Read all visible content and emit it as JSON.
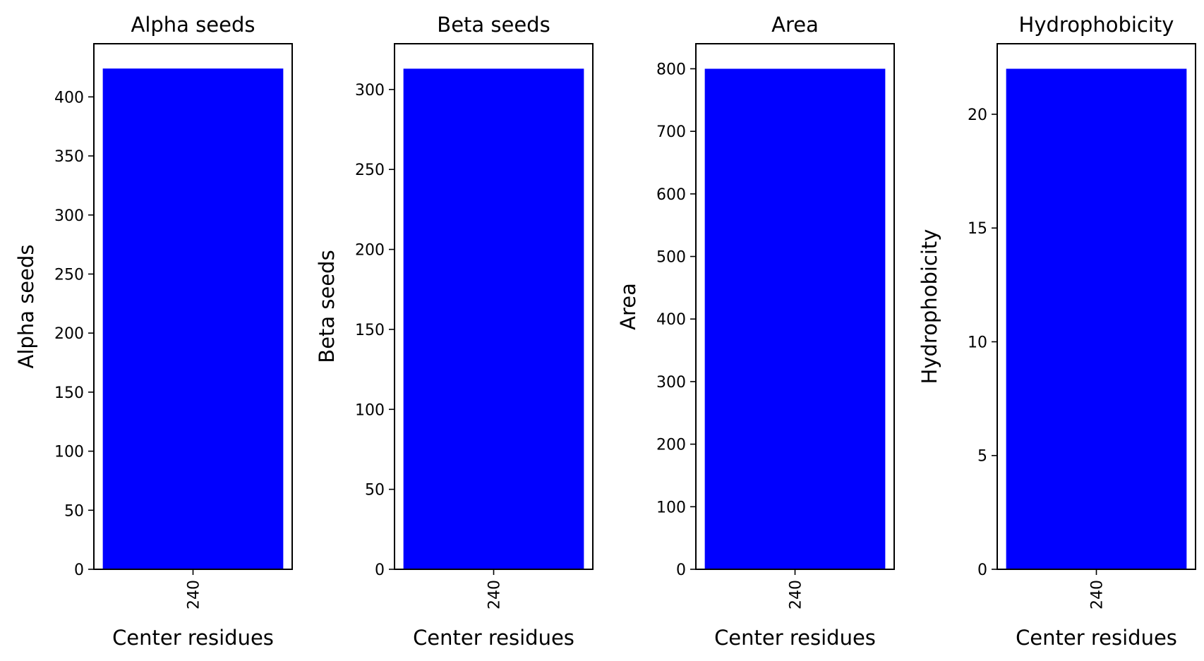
{
  "chart_data": [
    {
      "type": "bar",
      "title": "Alpha seeds",
      "xlabel": "Center residues",
      "ylabel": "Alpha seeds",
      "categories": [
        "240"
      ],
      "values": [
        424
      ],
      "ylim": [
        0,
        445
      ],
      "yticks": [
        0,
        50,
        100,
        150,
        200,
        250,
        300,
        350,
        400
      ],
      "color": "#0000ff",
      "grid": false
    },
    {
      "type": "bar",
      "title": "Beta seeds",
      "xlabel": "Center residues",
      "ylabel": "Beta seeds",
      "categories": [
        "240"
      ],
      "values": [
        313
      ],
      "ylim": [
        0,
        328.6
      ],
      "yticks": [
        0,
        50,
        100,
        150,
        200,
        250,
        300
      ],
      "color": "#0000ff",
      "grid": false
    },
    {
      "type": "bar",
      "title": "Area",
      "xlabel": "Center residues",
      "ylabel": "Area",
      "categories": [
        "240"
      ],
      "values": [
        800
      ],
      "ylim": [
        0,
        840
      ],
      "yticks": [
        0,
        100,
        200,
        300,
        400,
        500,
        600,
        700,
        800
      ],
      "color": "#0000ff",
      "grid": false
    },
    {
      "type": "bar",
      "title": "Hydrophobicity",
      "xlabel": "Center residues",
      "ylabel": "Hydrophobicity",
      "categories": [
        "240"
      ],
      "values": [
        22
      ],
      "ylim": [
        0,
        23.1
      ],
      "yticks": [
        0,
        5,
        10,
        15,
        20
      ],
      "color": "#0000ff",
      "grid": false
    }
  ]
}
